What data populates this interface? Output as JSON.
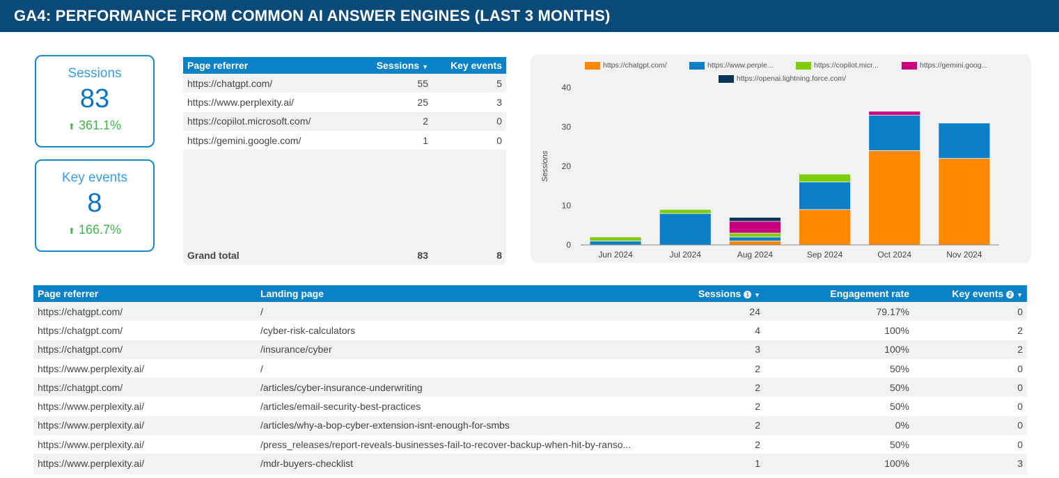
{
  "header": {
    "title": "GA4: PERFORMANCE FROM COMMON AI ANSWER ENGINES (LAST 3 MONTHS)"
  },
  "scorecards": [
    {
      "label": "Sessions",
      "value": "83",
      "delta": "361.1%",
      "trend": "up"
    },
    {
      "label": "Key events",
      "value": "8",
      "delta": "166.7%",
      "trend": "up"
    }
  ],
  "referrer_table": {
    "columns": [
      "Page referrer",
      "Sessions",
      "Key events"
    ],
    "sort_icon": "caret-down-icon",
    "rows": [
      [
        "https://chatgpt.com/",
        "55",
        "5"
      ],
      [
        "https://www.perplexity.ai/",
        "25",
        "3"
      ],
      [
        "https://copilot.microsoft.com/",
        "2",
        "0"
      ],
      [
        "https://gemini.google.com/",
        "1",
        "0"
      ]
    ],
    "total": [
      "Grand total",
      "83",
      "8"
    ]
  },
  "chart_data": {
    "type": "bar",
    "stacked": true,
    "categories": [
      "Jun 2024",
      "Jul 2024",
      "Aug 2024",
      "Sep 2024",
      "Oct 2024",
      "Nov 2024"
    ],
    "ylabel": "Sessions",
    "ylim": [
      0,
      40
    ],
    "yticks": [
      "0",
      "10",
      "20",
      "30",
      "40"
    ],
    "legend_position": "top",
    "series": [
      {
        "name": "https://chatgpt.com/",
        "color": "#ff8800",
        "values": [
          0,
          0,
          1,
          9,
          24,
          22
        ]
      },
      {
        "name": "https://www.perple...",
        "color": "#0a7fc7",
        "values": [
          1,
          8,
          1,
          7,
          9,
          9
        ]
      },
      {
        "name": "https://copilot.micr...",
        "color": "#7fcc00",
        "values": [
          1,
          1,
          1,
          2,
          0,
          0
        ]
      },
      {
        "name": "https://gemini.goog...",
        "color": "#c8007f",
        "values": [
          0,
          0,
          3,
          0,
          1,
          0
        ]
      },
      {
        "name": "https://openai.lightning.force.com/",
        "color": "#033557",
        "values": [
          0,
          0,
          1,
          0,
          0,
          0
        ]
      }
    ]
  },
  "landing_table": {
    "columns": [
      "Page referrer",
      "Landing page",
      "Sessions",
      "Engagement rate",
      "Key events"
    ],
    "sort_badges": [
      "1",
      "2"
    ],
    "rows": [
      [
        "https://chatgpt.com/",
        "/",
        "24",
        "79.17%",
        "0"
      ],
      [
        "https://chatgpt.com/",
        "/cyber-risk-calculators",
        "4",
        "100%",
        "2"
      ],
      [
        "https://chatgpt.com/",
        "/insurance/cyber",
        "3",
        "100%",
        "2"
      ],
      [
        "https://www.perplexity.ai/",
        "/",
        "2",
        "50%",
        "0"
      ],
      [
        "https://chatgpt.com/",
        "/articles/cyber-insurance-underwriting",
        "2",
        "50%",
        "0"
      ],
      [
        "https://www.perplexity.ai/",
        "/articles/email-security-best-practices",
        "2",
        "50%",
        "0"
      ],
      [
        "https://www.perplexity.ai/",
        "/articles/why-a-bop-cyber-extension-isnt-enough-for-smbs",
        "2",
        "0%",
        "0"
      ],
      [
        "https://www.perplexity.ai/",
        "/press_releases/report-reveals-businesses-fail-to-recover-backup-when-hit-by-ranso...",
        "2",
        "50%",
        "0"
      ],
      [
        "https://www.perplexity.ai/",
        "/mdr-buyers-checklist",
        "1",
        "100%",
        "3"
      ]
    ]
  }
}
